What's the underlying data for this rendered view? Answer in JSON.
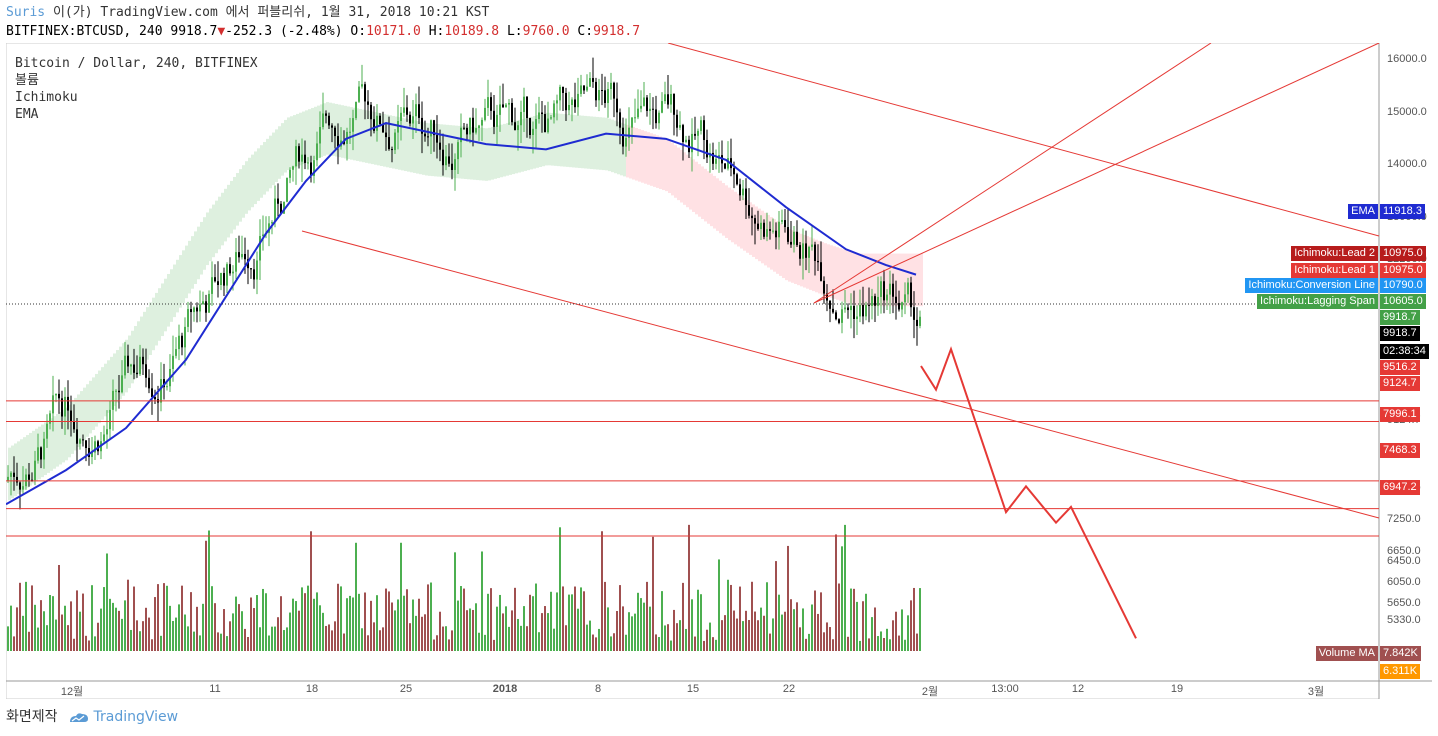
{
  "header": {
    "user": "Suris",
    "publish_line": "이(가) TradingView.com 에서 퍼블리쉬, 1월 31, 2018 10:21 KST",
    "symbol": "BITFINEX:BTCUSD, 240",
    "last": "9918.7",
    "down_arrow": "▼",
    "change": "-252.3 (-2.48%)",
    "o_label": "O:",
    "o_value": "10171.0",
    "h_label": "H:",
    "h_value": "10189.8",
    "l_label": "L:",
    "l_value": "9760.0",
    "c_label": "C:",
    "c_value": "9918.7"
  },
  "legend": {
    "title": "Bitcoin / Dollar, 240, BITFINEX",
    "items": [
      "볼륨",
      "Ichimoku",
      "EMA"
    ]
  },
  "footer": {
    "left": "화면제작",
    "brand": "TradingView",
    "brand_icon": "tradingview-cloud-icon"
  },
  "colors": {
    "up": "#4caf50",
    "down": "#000000",
    "ema": "#1f2bd1",
    "level_line": "#e53935",
    "cloud_green": "#c8e6c9",
    "cloud_red": "#ffcdd2",
    "lagging": "#7cb342",
    "conversion": "#2196f3",
    "base": "#e57373",
    "volume_up": "#4caf50",
    "volume_down": "#a05050",
    "volume_ma": "#ff9800"
  },
  "chart_data": {
    "type": "candlestick",
    "symbol": "BITFINEX:BTCUSD",
    "interval": "240",
    "y_axis_ticks": [
      "16000.0",
      "15000.0",
      "14000.0",
      "13000.0",
      "12200.0",
      "11400.0",
      "9124.7",
      "7850.0",
      "7250.0",
      "6650.0",
      "6450.0",
      "6050.0",
      "5650.0",
      "5330.0"
    ],
    "x_axis_ticks": [
      "12월",
      "11",
      "18",
      "25",
      "2018",
      "8",
      "15",
      "22",
      "2월",
      "13:00",
      "12",
      "19",
      "3월"
    ],
    "ylim": [
      4900,
      16500
    ],
    "horizontal_levels": [
      9918.7,
      9516.2,
      9124.7,
      7996.1,
      7468.3,
      6947.2
    ],
    "price_tags": [
      {
        "label": "EMA",
        "value": "11918.3",
        "color": "#1f2bd1"
      },
      {
        "label": "Ichimoku:Lead 2",
        "value": "10975.0",
        "color": "#b71c1c"
      },
      {
        "label": "Ichimoku:Lead 1",
        "value": "10975.0",
        "color": "#e53935"
      },
      {
        "label": "Ichimoku:Conversion Line",
        "value": "10790.0",
        "color": "#2196f3"
      },
      {
        "label": "Ichimoku:Lagging Span",
        "value": "10605.0",
        "color": "#43a047"
      },
      {
        "label": "",
        "value": "9918.7",
        "color": "#43a047"
      },
      {
        "label": "",
        "value": "9918.7",
        "color": "#000000"
      },
      {
        "label": "",
        "value": "02:38:34",
        "color": "#000000"
      },
      {
        "label": "",
        "value": "9516.2",
        "color": "#e53935"
      },
      {
        "label": "",
        "value": "9124.7",
        "color": "#e53935"
      },
      {
        "label": "",
        "value": "7996.1",
        "color": "#e53935"
      },
      {
        "label": "",
        "value": "7468.3",
        "color": "#e53935"
      },
      {
        "label": "",
        "value": "6947.2",
        "color": "#e53935"
      },
      {
        "label": "Volume MA",
        "value": "7.842K",
        "color": "#a05050"
      },
      {
        "label": "",
        "value": "6.311K",
        "color": "#ff9800"
      }
    ],
    "ema_path": [
      [
        0,
        7550
      ],
      [
        60,
        8200
      ],
      [
        120,
        9000
      ],
      [
        180,
        10300
      ],
      [
        220,
        11500
      ],
      [
        260,
        12700
      ],
      [
        300,
        13700
      ],
      [
        340,
        14500
      ],
      [
        380,
        14800
      ],
      [
        430,
        14600
      ],
      [
        480,
        14400
      ],
      [
        540,
        14300
      ],
      [
        600,
        14600
      ],
      [
        660,
        14500
      ],
      [
        720,
        14100
      ],
      [
        780,
        13200
      ],
      [
        840,
        12400
      ],
      [
        880,
        12100
      ],
      [
        910,
        11918
      ]
    ],
    "forecast_path": [
      [
        915,
        10180
      ],
      [
        930,
        9730
      ],
      [
        945,
        10500
      ],
      [
        1000,
        7400
      ],
      [
        1020,
        7890
      ],
      [
        1050,
        7200
      ],
      [
        1065,
        7500
      ],
      [
        1130,
        5000
      ]
    ]
  }
}
